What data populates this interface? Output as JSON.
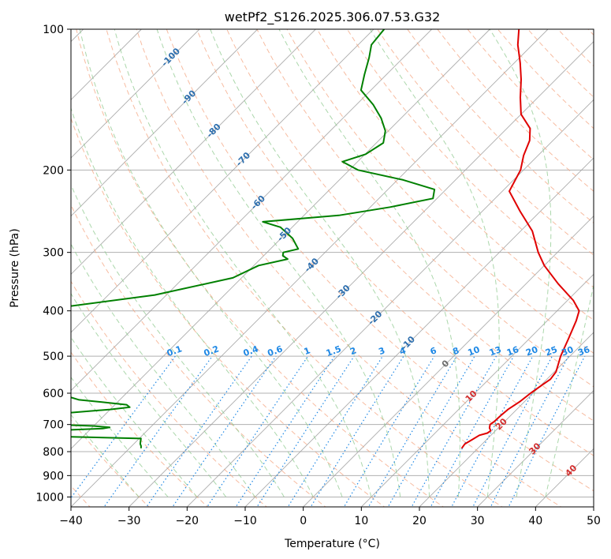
{
  "chart_data": {
    "type": "line",
    "title": "wetPf2_S126.2025.306.07.53.G32",
    "xlabel": "Temperature (°C)",
    "ylabel": "Pressure (hPa)",
    "xlim": [
      -40,
      50
    ],
    "ylim": [
      1050,
      100
    ],
    "y_log_scale": true,
    "x_ticks": [
      -40,
      -30,
      -20,
      -10,
      0,
      10,
      20,
      30,
      40,
      50
    ],
    "y_ticks": [
      100,
      200,
      300,
      400,
      500,
      600,
      700,
      800,
      900,
      1000
    ],
    "isotherm_skew_deg": 45,
    "grid": true,
    "colors": {
      "temperature": "#e00000",
      "dewpoint": "#008000",
      "dry_adiabats": "#f4a582",
      "moist_adiabats": "#8fc98f",
      "mixing_ratio": "#1e88e5",
      "isotherms": "#9e9e9e",
      "gridlines": "#b0b0b0"
    },
    "series": [
      {
        "name": "Temperature",
        "pressure": [
          787,
          770,
          755,
          738,
          730,
          722,
          712,
          700,
          690,
          670,
          650,
          625,
          600,
          575,
          560,
          540,
          500,
          460,
          420,
          400,
          380,
          350,
          320,
          300,
          270,
          245,
          222,
          200,
          186,
          173,
          163,
          152,
          140,
          128,
          118,
          108,
          100
        ],
        "values": [
          17.2,
          17.0,
          17.5,
          18.0,
          19.0,
          19.2,
          18.5,
          18.0,
          18.2,
          18.3,
          18.5,
          19.2,
          19.6,
          20.2,
          20.6,
          20.3,
          18.4,
          16.8,
          15.0,
          13.8,
          11.0,
          5.5,
          0.0,
          -3.3,
          -8.0,
          -13.5,
          -18.8,
          -20.5,
          -22.5,
          -24.0,
          -26.0,
          -30.0,
          -33.0,
          -36.0,
          -39.0,
          -42.5,
          -45.0
        ]
      },
      {
        "name": "Dewpoint",
        "pressure": [
          787,
          778,
          770,
          760,
          750,
          745,
          740,
          737,
          733,
          727,
          720,
          714,
          710,
          705,
          700,
          695,
          680,
          665,
          650,
          643,
          635,
          628,
          620,
          600,
          575,
          550,
          500,
          450,
          400,
          370,
          340,
          320,
          310,
          305,
          300,
          295,
          280,
          265,
          258,
          250,
          240,
          230,
          220,
          210,
          200,
          192,
          185,
          175,
          165,
          155,
          145,
          135,
          125,
          115,
          108,
          100
        ],
        "values": [
          -38.0,
          -38.4,
          -38.9,
          -39.3,
          -39.7,
          -49,
          -60,
          -68,
          -73,
          -69,
          -55,
          -48,
          -47,
          -50,
          -57,
          -62,
          -64,
          -59,
          -50,
          -47,
          -48,
          -52,
          -57,
          -62,
          -68,
          -74,
          -78,
          -80,
          -80,
          -62,
          -51.5,
          -49.2,
          -45.3,
          -46.7,
          -47.2,
          -45.2,
          -48.0,
          -52.0,
          -56.0,
          -44.0,
          -36.6,
          -30.7,
          -32.0,
          -39.0,
          -48.5,
          -52.6,
          -49.9,
          -48.8,
          -50.5,
          -53.4,
          -57.1,
          -61.7,
          -63.8,
          -65.9,
          -67.7,
          -68.2
        ]
      }
    ],
    "dry_adiabat_labels": [
      "-100",
      "-90",
      "-80",
      "-70",
      "-60",
      "-50",
      "-40",
      "-30",
      "-20",
      "-10",
      "0",
      "10",
      "20",
      "30",
      "40"
    ],
    "mixing_ratio_labels": [
      "0.1",
      "0.2",
      "0.4",
      "0.6",
      "1",
      "1.5",
      "2",
      "3",
      "4",
      "6",
      "8",
      "10",
      "13",
      "16",
      "20",
      "25",
      "30",
      "36"
    ]
  }
}
